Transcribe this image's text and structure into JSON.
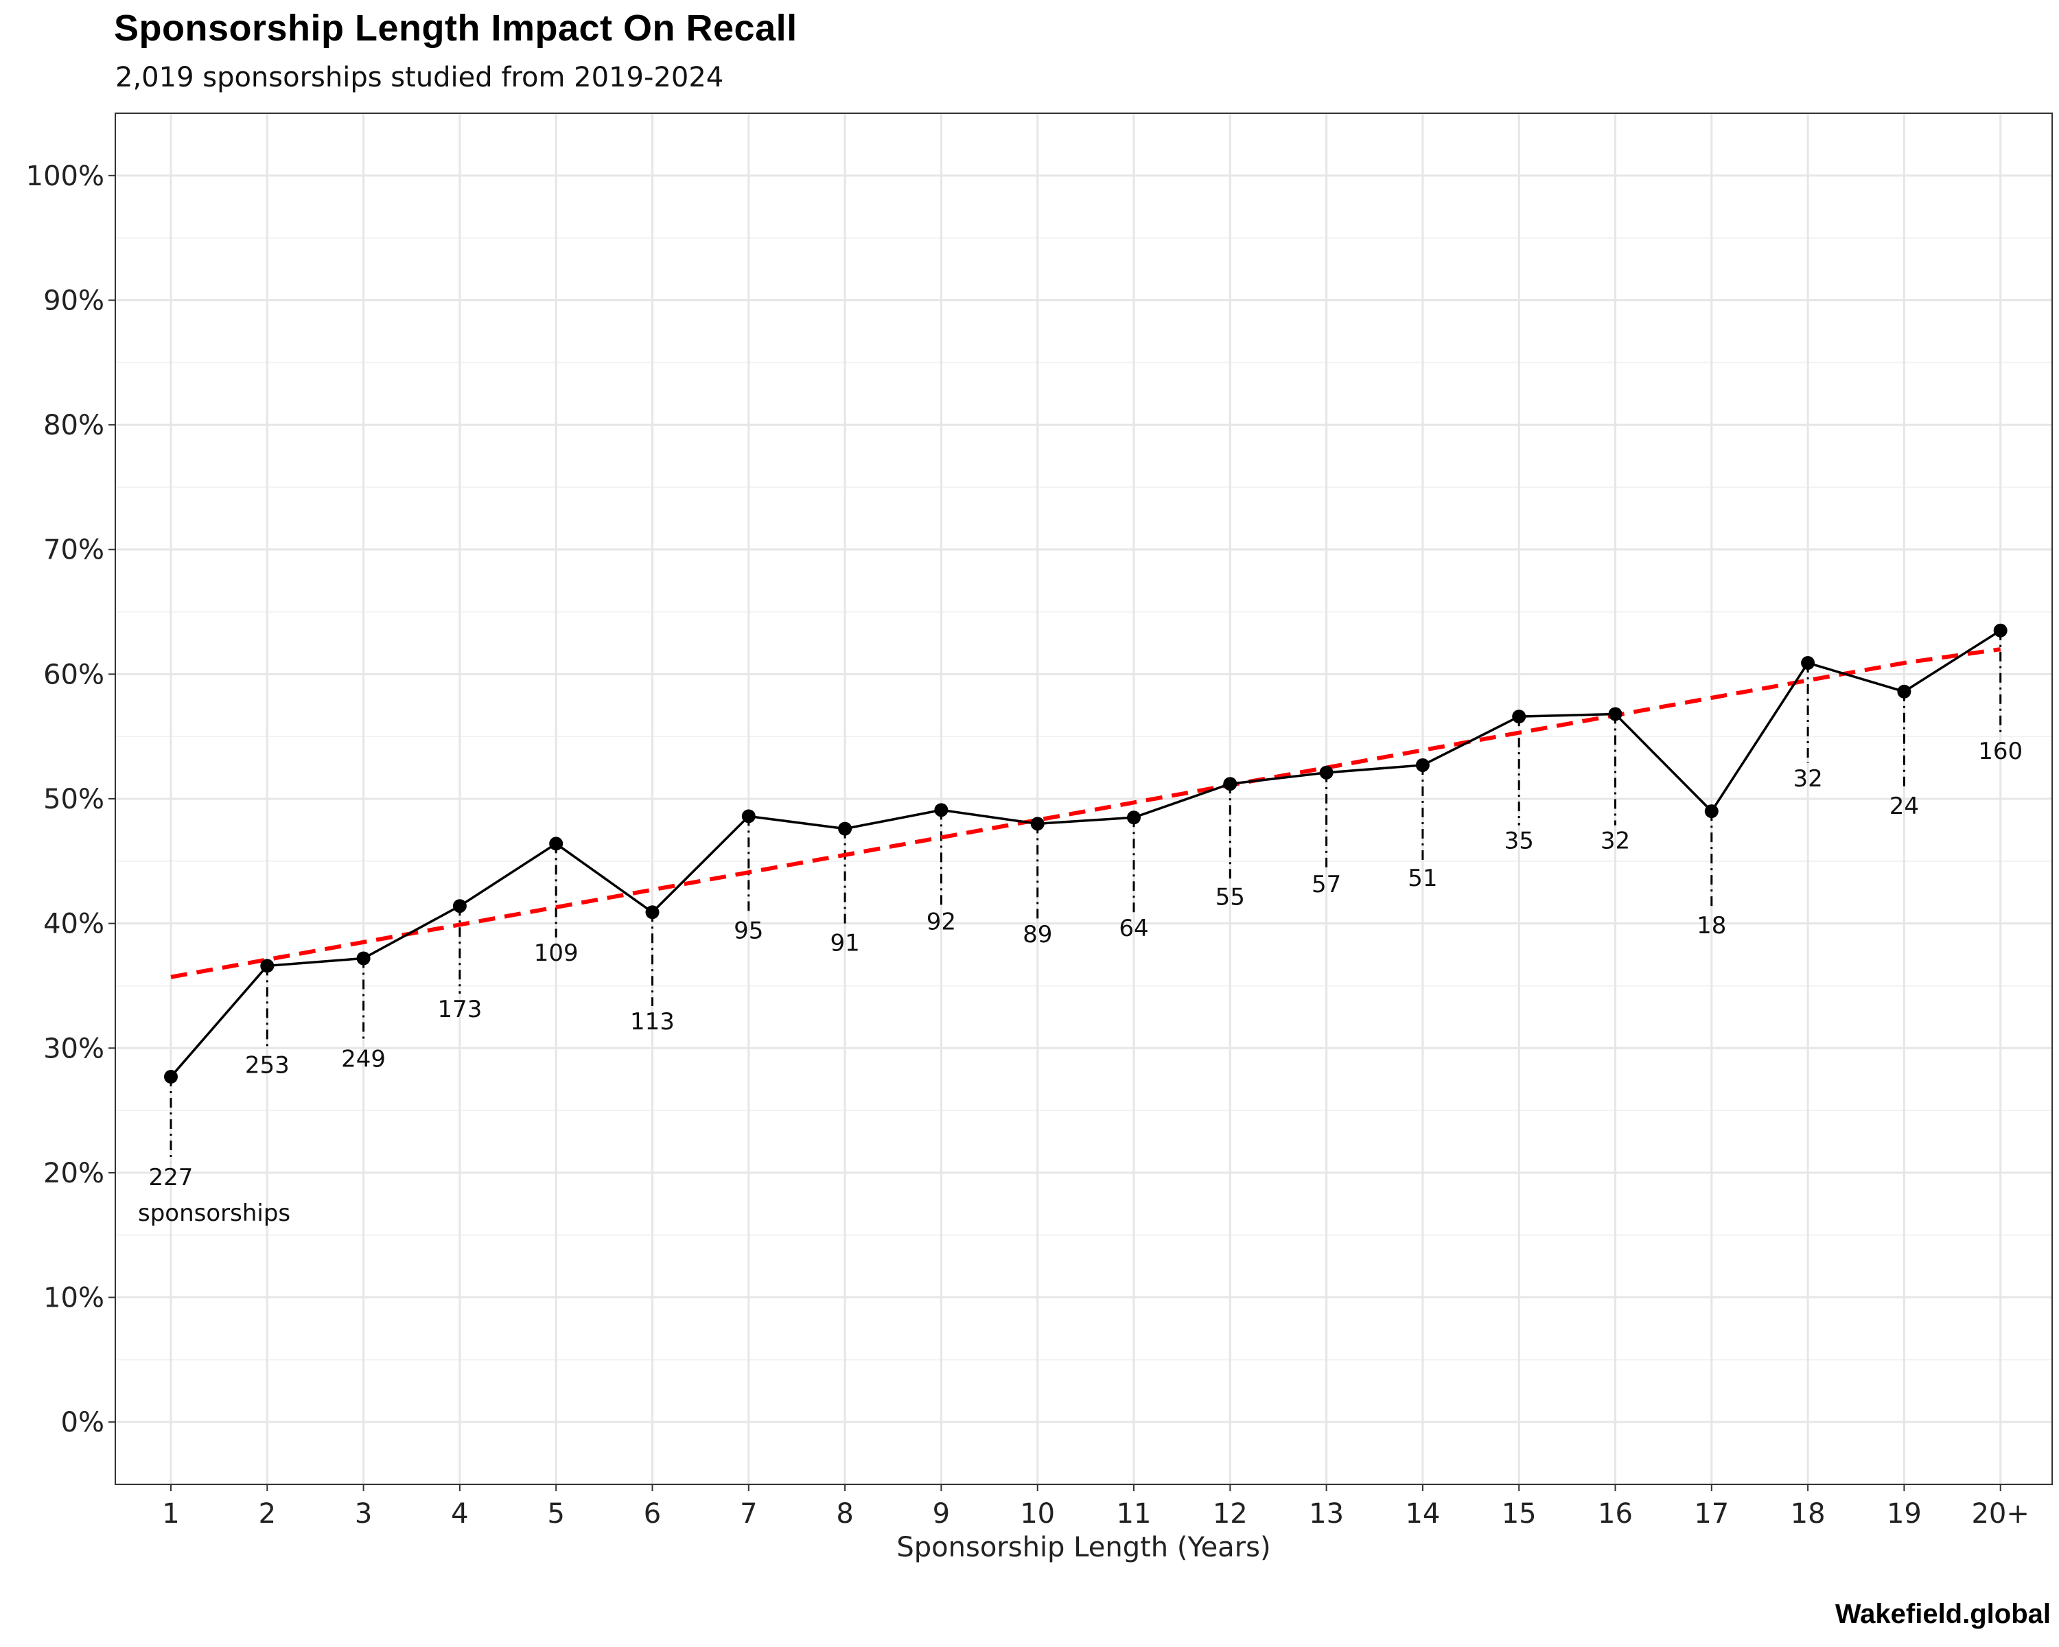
{
  "title": "Sponsorship Length Impact On Recall",
  "subtitle": "2,019 sponsorships studied from 2019-2024",
  "source": "Wakefield.global",
  "chart_data": {
    "type": "line",
    "xlabel": "Sponsorship Length (Years)",
    "ylabel": "",
    "categories": [
      "1",
      "2",
      "3",
      "4",
      "5",
      "6",
      "7",
      "8",
      "9",
      "10",
      "11",
      "12",
      "13",
      "14",
      "15",
      "16",
      "17",
      "18",
      "19",
      "20+"
    ],
    "series": [
      {
        "values": [
          27.7,
          36.6,
          37.2,
          41.4,
          46.4,
          40.9,
          48.6,
          47.6,
          49.1,
          48.0,
          48.5,
          51.2,
          52.1,
          52.7,
          56.6,
          56.8,
          49.0,
          60.9,
          58.6,
          63.5
        ],
        "color": "#000000"
      },
      {
        "type": "dashed-trend",
        "values": [
          35.7,
          37.1,
          38.5,
          39.9,
          41.3,
          42.7,
          44.1,
          45.5,
          46.9,
          48.3,
          49.7,
          51.1,
          52.5,
          53.9,
          55.3,
          56.7,
          58.1,
          59.5,
          60.9,
          62.0
        ],
        "color": "#ff0000"
      }
    ],
    "annotations": {
      "counts": [
        "227",
        "253",
        "249",
        "173",
        "109",
        "113",
        "95",
        "91",
        "92",
        "89",
        "64",
        "55",
        "57",
        "51",
        "35",
        "32",
        "18",
        "32",
        "24",
        "160"
      ],
      "first_suffix": "sponsorships",
      "count_label_y": [
        19,
        28,
        28.5,
        32.5,
        37,
        31.5,
        38.8,
        37.8,
        39.5,
        38.5,
        39,
        41.5,
        42.5,
        43,
        46,
        46,
        39.2,
        51,
        48.8,
        53.2
      ]
    },
    "yticks": [
      "0%",
      "10%",
      "20%",
      "30%",
      "40%",
      "50%",
      "60%",
      "70%",
      "80%",
      "90%",
      "100%"
    ],
    "ylim": [
      -5,
      105
    ],
    "grid": true
  }
}
